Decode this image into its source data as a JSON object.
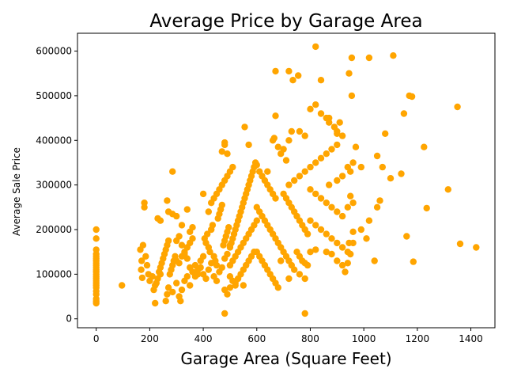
{
  "chart_data": {
    "type": "scatter",
    "title": "Average Price by Garage Area",
    "xlabel": "Garage Area (Square Feet)",
    "ylabel": "Average Sale Price",
    "xlim": [
      -70,
      1490
    ],
    "ylim": [
      -20000,
      640000
    ],
    "xticks": [
      0,
      200,
      400,
      600,
      800,
      1000,
      1200,
      1400
    ],
    "yticks": [
      0,
      100000,
      200000,
      300000,
      400000,
      500000,
      600000
    ],
    "grid": false,
    "color": "#ffa500",
    "points": [
      [
        0,
        200000
      ],
      [
        0,
        180000
      ],
      [
        0,
        155000
      ],
      [
        0,
        145000
      ],
      [
        0,
        140000
      ],
      [
        0,
        135000
      ],
      [
        0,
        130000
      ],
      [
        0,
        125000
      ],
      [
        0,
        120000
      ],
      [
        0,
        115000
      ],
      [
        0,
        110000
      ],
      [
        0,
        105000
      ],
      [
        0,
        100000
      ],
      [
        0,
        95000
      ],
      [
        0,
        90000
      ],
      [
        0,
        85000
      ],
      [
        0,
        80000
      ],
      [
        0,
        75000
      ],
      [
        0,
        70000
      ],
      [
        0,
        62000
      ],
      [
        0,
        55000
      ],
      [
        0,
        45000
      ],
      [
        0,
        40000
      ],
      [
        0,
        35000
      ],
      [
        96,
        75000
      ],
      [
        180,
        260000
      ],
      [
        180,
        250000
      ],
      [
        175,
        165000
      ],
      [
        165,
        155000
      ],
      [
        170,
        130000
      ],
      [
        168,
        110000
      ],
      [
        172,
        92000
      ],
      [
        185,
        140000
      ],
      [
        190,
        120000
      ],
      [
        195,
        100000
      ],
      [
        200,
        85000
      ],
      [
        210,
        95000
      ],
      [
        215,
        65000
      ],
      [
        220,
        75000
      ],
      [
        225,
        80000
      ],
      [
        230,
        90000
      ],
      [
        235,
        105000
      ],
      [
        240,
        115000
      ],
      [
        245,
        125000
      ],
      [
        250,
        135000
      ],
      [
        255,
        145000
      ],
      [
        260,
        155000
      ],
      [
        265,
        165000
      ],
      [
        270,
        175000
      ],
      [
        275,
        100000
      ],
      [
        280,
        110000
      ],
      [
        285,
        120000
      ],
      [
        290,
        130000
      ],
      [
        295,
        140000
      ],
      [
        220,
        35000
      ],
      [
        240,
        100000
      ],
      [
        260,
        40000
      ],
      [
        265,
        55000
      ],
      [
        270,
        70000
      ],
      [
        285,
        60000
      ],
      [
        300,
        80000
      ],
      [
        310,
        50000
      ],
      [
        315,
        40000
      ],
      [
        320,
        65000
      ],
      [
        330,
        85000
      ],
      [
        340,
        95000
      ],
      [
        350,
        75000
      ],
      [
        230,
        225000
      ],
      [
        240,
        220000
      ],
      [
        265,
        265000
      ],
      [
        270,
        240000
      ],
      [
        285,
        235000
      ],
      [
        285,
        330000
      ],
      [
        300,
        230000
      ],
      [
        320,
        210000
      ],
      [
        340,
        245000
      ],
      [
        350,
        195000
      ],
      [
        360,
        205000
      ],
      [
        300,
        130000
      ],
      [
        310,
        125000
      ],
      [
        320,
        140000
      ],
      [
        330,
        150000
      ],
      [
        340,
        160000
      ],
      [
        350,
        170000
      ],
      [
        360,
        180000
      ],
      [
        370,
        120000
      ],
      [
        380,
        110000
      ],
      [
        390,
        130000
      ],
      [
        400,
        140000
      ],
      [
        300,
        175000
      ],
      [
        310,
        185000
      ],
      [
        320,
        165000
      ],
      [
        330,
        145000
      ],
      [
        340,
        135000
      ],
      [
        350,
        115000
      ],
      [
        360,
        105000
      ],
      [
        370,
        95000
      ],
      [
        380,
        100000
      ],
      [
        390,
        115000
      ],
      [
        400,
        280000
      ],
      [
        405,
        180000
      ],
      [
        410,
        170000
      ],
      [
        415,
        190000
      ],
      [
        420,
        160000
      ],
      [
        425,
        150000
      ],
      [
        430,
        200000
      ],
      [
        435,
        210000
      ],
      [
        440,
        140000
      ],
      [
        445,
        130000
      ],
      [
        450,
        120000
      ],
      [
        455,
        225000
      ],
      [
        460,
        235000
      ],
      [
        465,
        245000
      ],
      [
        470,
        255000
      ],
      [
        475,
        165000
      ],
      [
        480,
        175000
      ],
      [
        485,
        185000
      ],
      [
        490,
        195000
      ],
      [
        495,
        205000
      ],
      [
        400,
        100000
      ],
      [
        410,
        90000
      ],
      [
        420,
        110000
      ],
      [
        430,
        125000
      ],
      [
        440,
        95000
      ],
      [
        450,
        85000
      ],
      [
        460,
        105000
      ],
      [
        470,
        115000
      ],
      [
        480,
        135000
      ],
      [
        490,
        145000
      ],
      [
        420,
        240000
      ],
      [
        430,
        260000
      ],
      [
        440,
        270000
      ],
      [
        450,
        280000
      ],
      [
        460,
        290000
      ],
      [
        470,
        300000
      ],
      [
        480,
        310000
      ],
      [
        490,
        320000
      ],
      [
        500,
        330000
      ],
      [
        510,
        340000
      ],
      [
        470,
        375000
      ],
      [
        480,
        390000
      ],
      [
        490,
        370000
      ],
      [
        480,
        395000
      ],
      [
        500,
        160000
      ],
      [
        500,
        165000
      ],
      [
        505,
        170000
      ],
      [
        510,
        180000
      ],
      [
        515,
        190000
      ],
      [
        520,
        200000
      ],
      [
        525,
        210000
      ],
      [
        530,
        220000
      ],
      [
        535,
        230000
      ],
      [
        540,
        240000
      ],
      [
        545,
        250000
      ],
      [
        550,
        260000
      ],
      [
        555,
        270000
      ],
      [
        560,
        280000
      ],
      [
        565,
        290000
      ],
      [
        570,
        300000
      ],
      [
        575,
        310000
      ],
      [
        580,
        320000
      ],
      [
        585,
        330000
      ],
      [
        590,
        340000
      ],
      [
        595,
        350000
      ],
      [
        500,
        120000
      ],
      [
        510,
        130000
      ],
      [
        520,
        140000
      ],
      [
        530,
        150000
      ],
      [
        540,
        160000
      ],
      [
        550,
        170000
      ],
      [
        560,
        180000
      ],
      [
        570,
        190000
      ],
      [
        580,
        200000
      ],
      [
        590,
        210000
      ],
      [
        600,
        220000
      ],
      [
        500,
        95000
      ],
      [
        510,
        85000
      ],
      [
        520,
        75000
      ],
      [
        530,
        90000
      ],
      [
        540,
        100000
      ],
      [
        550,
        110000
      ],
      [
        560,
        120000
      ],
      [
        570,
        130000
      ],
      [
        580,
        140000
      ],
      [
        590,
        150000
      ],
      [
        480,
        65000
      ],
      [
        490,
        55000
      ],
      [
        500,
        70000
      ],
      [
        480,
        12000
      ],
      [
        520,
        80000
      ],
      [
        550,
        75000
      ],
      [
        555,
        430000
      ],
      [
        570,
        390000
      ],
      [
        600,
        345000
      ],
      [
        610,
        330000
      ],
      [
        620,
        320000
      ],
      [
        630,
        310000
      ],
      [
        640,
        300000
      ],
      [
        650,
        290000
      ],
      [
        660,
        280000
      ],
      [
        670,
        270000
      ],
      [
        600,
        250000
      ],
      [
        610,
        240000
      ],
      [
        620,
        230000
      ],
      [
        630,
        220000
      ],
      [
        640,
        210000
      ],
      [
        650,
        200000
      ],
      [
        660,
        190000
      ],
      [
        670,
        180000
      ],
      [
        680,
        170000
      ],
      [
        690,
        160000
      ],
      [
        600,
        150000
      ],
      [
        610,
        140000
      ],
      [
        620,
        130000
      ],
      [
        630,
        120000
      ],
      [
        640,
        110000
      ],
      [
        650,
        100000
      ],
      [
        660,
        90000
      ],
      [
        670,
        80000
      ],
      [
        680,
        70000
      ],
      [
        690,
        130000
      ],
      [
        640,
        330000
      ],
      [
        660,
        400000
      ],
      [
        665,
        405000
      ],
      [
        670,
        455000
      ],
      [
        680,
        385000
      ],
      [
        690,
        370000
      ],
      [
        700,
        380000
      ],
      [
        710,
        355000
      ],
      [
        720,
        400000
      ],
      [
        730,
        420000
      ],
      [
        670,
        555000
      ],
      [
        720,
        555000
      ],
      [
        735,
        535000
      ],
      [
        755,
        545000
      ],
      [
        700,
        280000
      ],
      [
        710,
        270000
      ],
      [
        720,
        260000
      ],
      [
        730,
        250000
      ],
      [
        740,
        240000
      ],
      [
        750,
        230000
      ],
      [
        760,
        220000
      ],
      [
        770,
        210000
      ],
      [
        780,
        200000
      ],
      [
        790,
        190000
      ],
      [
        700,
        150000
      ],
      [
        710,
        140000
      ],
      [
        720,
        130000
      ],
      [
        730,
        120000
      ],
      [
        740,
        110000
      ],
      [
        750,
        150000
      ],
      [
        760,
        140000
      ],
      [
        770,
        130000
      ],
      [
        780,
        125000
      ],
      [
        790,
        120000
      ],
      [
        720,
        90000
      ],
      [
        760,
        100000
      ],
      [
        780,
        90000
      ],
      [
        780,
        12000
      ],
      [
        720,
        300000
      ],
      [
        740,
        310000
      ],
      [
        760,
        320000
      ],
      [
        780,
        330000
      ],
      [
        800,
        340000
      ],
      [
        820,
        350000
      ],
      [
        840,
        360000
      ],
      [
        860,
        370000
      ],
      [
        880,
        380000
      ],
      [
        900,
        390000
      ],
      [
        760,
        420000
      ],
      [
        780,
        410000
      ],
      [
        800,
        470000
      ],
      [
        820,
        480000
      ],
      [
        840,
        460000
      ],
      [
        860,
        450000
      ],
      [
        870,
        440000
      ],
      [
        890,
        430000
      ],
      [
        900,
        420000
      ],
      [
        910,
        440000
      ],
      [
        820,
        610000
      ],
      [
        840,
        535000
      ],
      [
        870,
        450000
      ],
      [
        900,
        415000
      ],
      [
        920,
        410000
      ],
      [
        800,
        290000
      ],
      [
        820,
        280000
      ],
      [
        840,
        270000
      ],
      [
        860,
        260000
      ],
      [
        880,
        250000
      ],
      [
        900,
        240000
      ],
      [
        920,
        230000
      ],
      [
        940,
        250000
      ],
      [
        950,
        275000
      ],
      [
        960,
        260000
      ],
      [
        800,
        220000
      ],
      [
        820,
        210000
      ],
      [
        840,
        200000
      ],
      [
        860,
        190000
      ],
      [
        880,
        180000
      ],
      [
        900,
        170000
      ],
      [
        920,
        160000
      ],
      [
        940,
        150000
      ],
      [
        950,
        145000
      ],
      [
        960,
        170000
      ],
      [
        800,
        150000
      ],
      [
        820,
        155000
      ],
      [
        860,
        150000
      ],
      [
        880,
        145000
      ],
      [
        900,
        130000
      ],
      [
        920,
        120000
      ],
      [
        930,
        105000
      ],
      [
        940,
        125000
      ],
      [
        945,
        170000
      ],
      [
        960,
        195000
      ],
      [
        870,
        300000
      ],
      [
        900,
        310000
      ],
      [
        920,
        320000
      ],
      [
        940,
        340000
      ],
      [
        950,
        330000
      ],
      [
        960,
        350000
      ],
      [
        970,
        385000
      ],
      [
        990,
        340000
      ],
      [
        945,
        550000
      ],
      [
        955,
        585000
      ],
      [
        955,
        500000
      ],
      [
        1020,
        585000
      ],
      [
        1110,
        590000
      ],
      [
        1170,
        500000
      ],
      [
        1180,
        498000
      ],
      [
        1150,
        460000
      ],
      [
        1080,
        415000
      ],
      [
        990,
        200000
      ],
      [
        1010,
        180000
      ],
      [
        1020,
        220000
      ],
      [
        1040,
        130000
      ],
      [
        1050,
        250000
      ],
      [
        1060,
        265000
      ],
      [
        1050,
        365000
      ],
      [
        1070,
        340000
      ],
      [
        1100,
        315000
      ],
      [
        1140,
        325000
      ],
      [
        1160,
        185000
      ],
      [
        1185,
        128000
      ],
      [
        1225,
        385000
      ],
      [
        1235,
        248000
      ],
      [
        1315,
        290000
      ],
      [
        1350,
        475000
      ],
      [
        1360,
        168000
      ],
      [
        1420,
        160000
      ]
    ]
  }
}
